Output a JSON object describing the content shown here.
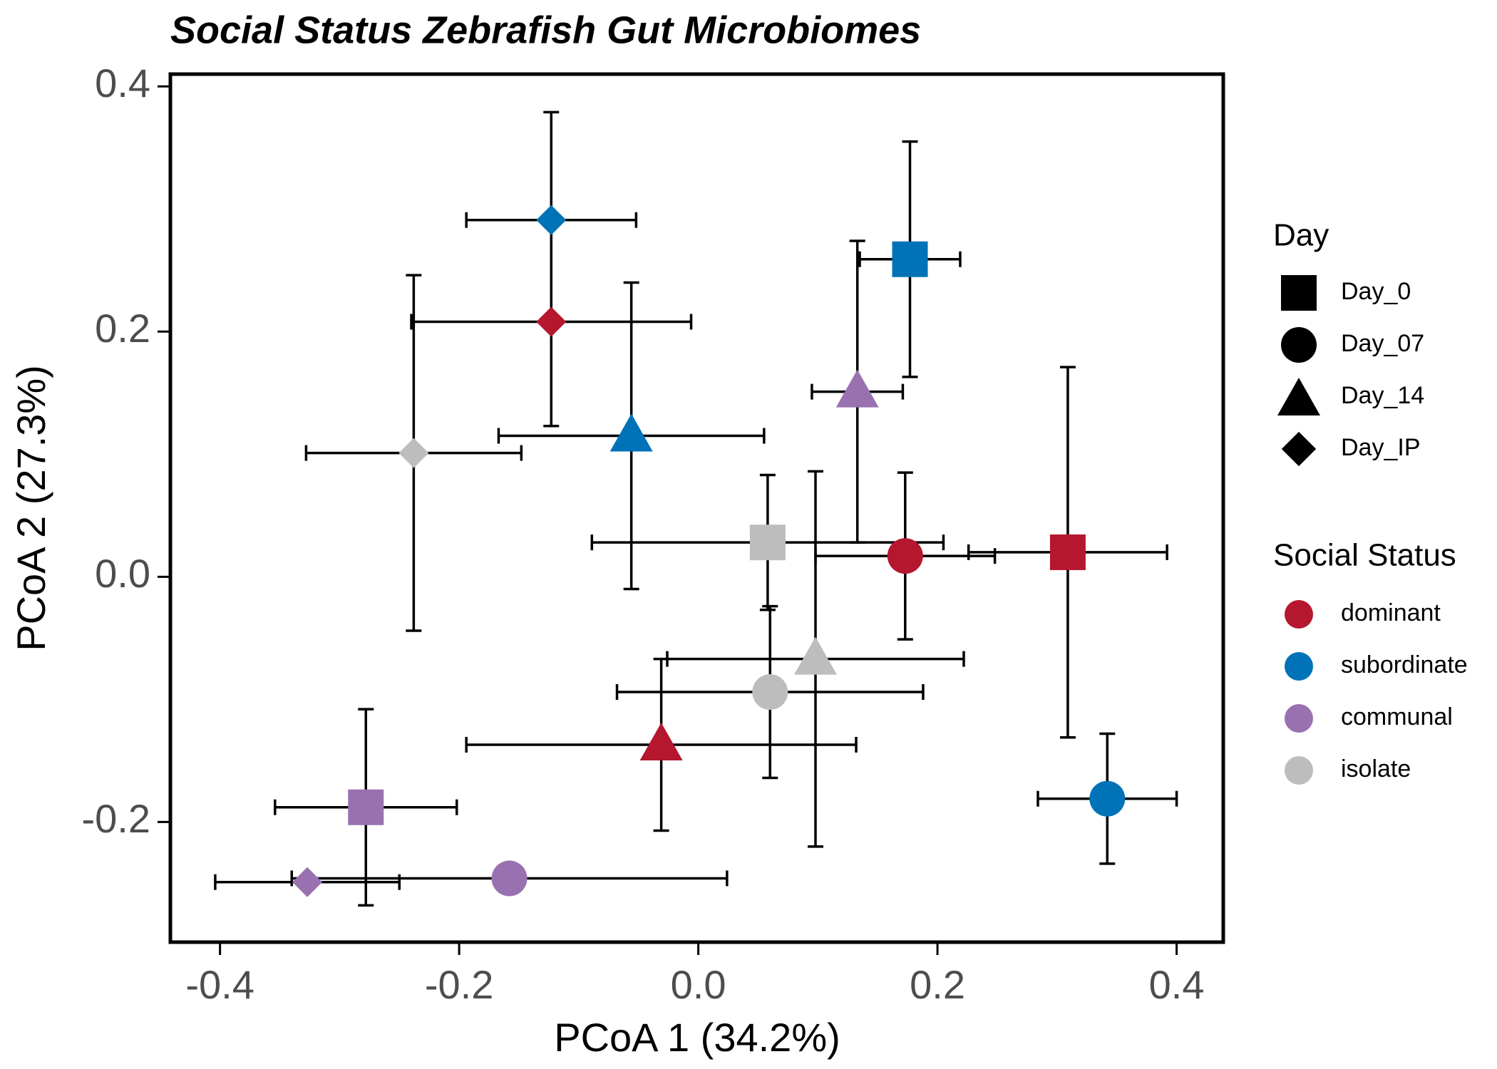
{
  "chart_data": {
    "type": "scatter",
    "title": "Social Status Zebrafish Gut Microbiomes",
    "x_label": "PCoA 1 (34.2%)",
    "y_label": "PCoA 2 (27.3%)",
    "xlim": [
      -0.4415,
      0.439
    ],
    "ylim": [
      -0.298,
      0.41
    ],
    "xticks": [
      -0.4,
      -0.2,
      {
        "value": 0,
        "label": "0.0"
      },
      0.2,
      0.4
    ],
    "yticks": [
      -0.2,
      {
        "value": 0,
        "label": "0.0"
      },
      0.2,
      0.4
    ],
    "shape_legend": {
      "title": "Day",
      "labels": [
        "Day_0",
        "Day_07",
        "Day_14",
        "Day_IP"
      ],
      "shapes": [
        "square",
        "circle",
        "triangle",
        "diamond"
      ]
    },
    "color_legend_title": "Social Status",
    "series": [
      {
        "name": "dominant",
        "color": "#b5172f",
        "x": [
          0.309,
          0.173,
          -0.031,
          -0.123
        ],
        "y": [
          0.02,
          0.017,
          -0.137,
          0.208
        ],
        "xerr": [
          0.083,
          0.075,
          0.163,
          0.117
        ],
        "yerr": [
          0.151,
          0.068,
          0.07,
          0.085
        ]
      },
      {
        "name": "subordinate",
        "color": "#0072b8",
        "x": [
          0.177,
          0.342,
          -0.056,
          -0.123
        ],
        "y": [
          0.259,
          -0.181,
          0.115,
          0.291
        ],
        "xerr": [
          0.042,
          0.058,
          0.111,
          0.071
        ],
        "yerr": [
          0.096,
          0.053,
          0.125,
          0.088
        ]
      },
      {
        "name": "communal",
        "color": "#9a71b0",
        "x": [
          -0.278,
          -0.158,
          0.133,
          -0.327
        ],
        "y": [
          -0.188,
          -0.246,
          0.151,
          -0.249
        ],
        "xerr": [
          0.076,
          0.182,
          0.038,
          0.077
        ],
        "yerr": [
          0.08,
          0.008,
          0.123,
          0.005
        ]
      },
      {
        "name": "isolate",
        "color": "#bdbdbd",
        "x": [
          0.058,
          0.06,
          0.098,
          -0.238
        ],
        "y": [
          0.028,
          -0.094,
          -0.067,
          0.101
        ],
        "xerr": [
          0.147,
          0.128,
          0.124,
          0.09
        ],
        "yerr": [
          0.055,
          0.07,
          0.153,
          0.145
        ]
      }
    ]
  }
}
